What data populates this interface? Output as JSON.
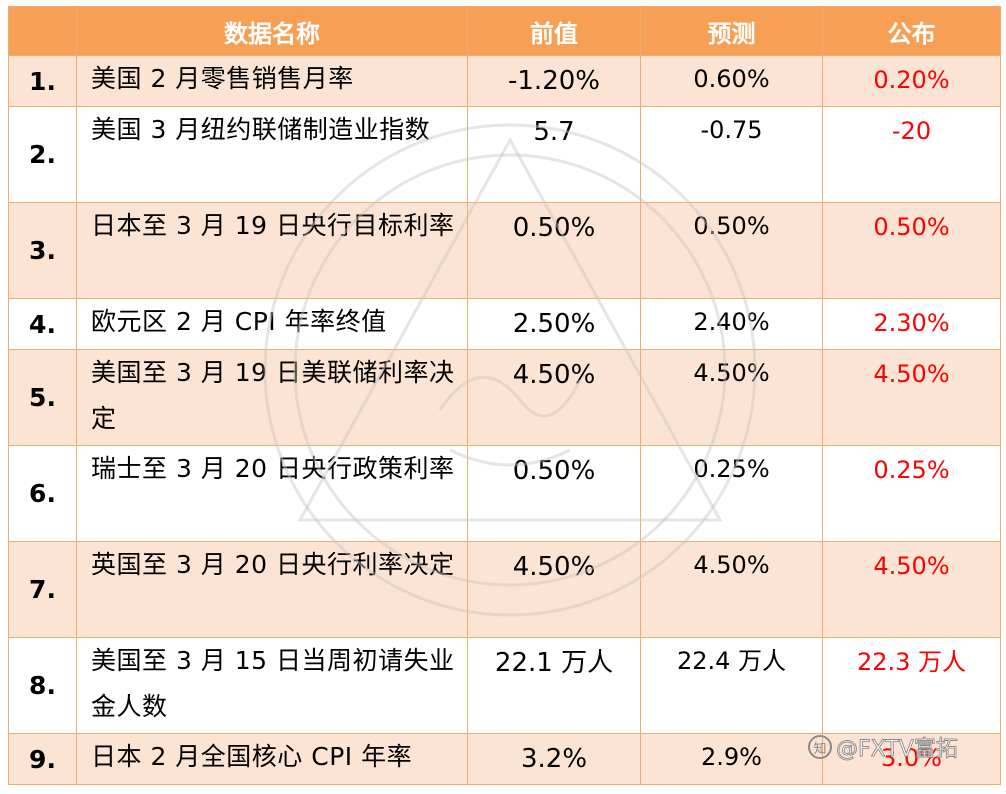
{
  "table": {
    "headers": {
      "index": "",
      "name": "数据名称",
      "previous": "前值",
      "forecast": "预测",
      "published": "公布"
    },
    "rows": [
      {
        "num": "1.",
        "name": "美国 2 月零售销售月率",
        "previous": "-1.20%",
        "forecast": "0.60%",
        "published": "0.20%"
      },
      {
        "num": "2.",
        "name": "美国 3 月纽约联储制造业指数",
        "previous": "5.7",
        "forecast": "-0.75",
        "published": "-20"
      },
      {
        "num": "3.",
        "name": "日本至 3 月 19 日央行目标利率",
        "previous": "0.50%",
        "forecast": "0.50%",
        "published": "0.50%"
      },
      {
        "num": "4.",
        "name": "欧元区 2 月 CPI 年率终值",
        "previous": "2.50%",
        "forecast": "2.40%",
        "published": "2.30%"
      },
      {
        "num": "5.",
        "name": "美国至 3 月 19 日美联储利率决定",
        "previous": "4.50%",
        "forecast": "4.50%",
        "published": "4.50%"
      },
      {
        "num": "6.",
        "name": "瑞士至 3 月 20 日央行政策利率",
        "previous": "0.50%",
        "forecast": "0.25%",
        "published": "0.25%"
      },
      {
        "num": "7.",
        "name": "英国至 3 月 20 日央行利率决定",
        "previous": "4.50%",
        "forecast": "4.50%",
        "published": "4.50%"
      },
      {
        "num": "8.",
        "name": "美国至 3 月 15 日当周初请失业金人数",
        "previous": "22.1 万人",
        "forecast": "22.4 万人",
        "published": "22.3 万人"
      },
      {
        "num": "9.",
        "name": "日本 2 月全国核心 CPI 年率",
        "previous": "3.2%",
        "forecast": "2.9%",
        "published": "3.0%"
      }
    ]
  },
  "credit": {
    "text": "@FXTV富拓",
    "icon": "zhihu-icon",
    "icon_glyph": "知"
  },
  "colors": {
    "header_bg": "#f7a055",
    "alt_row_bg": "#fce4d4",
    "published_text": "#ff0000"
  }
}
